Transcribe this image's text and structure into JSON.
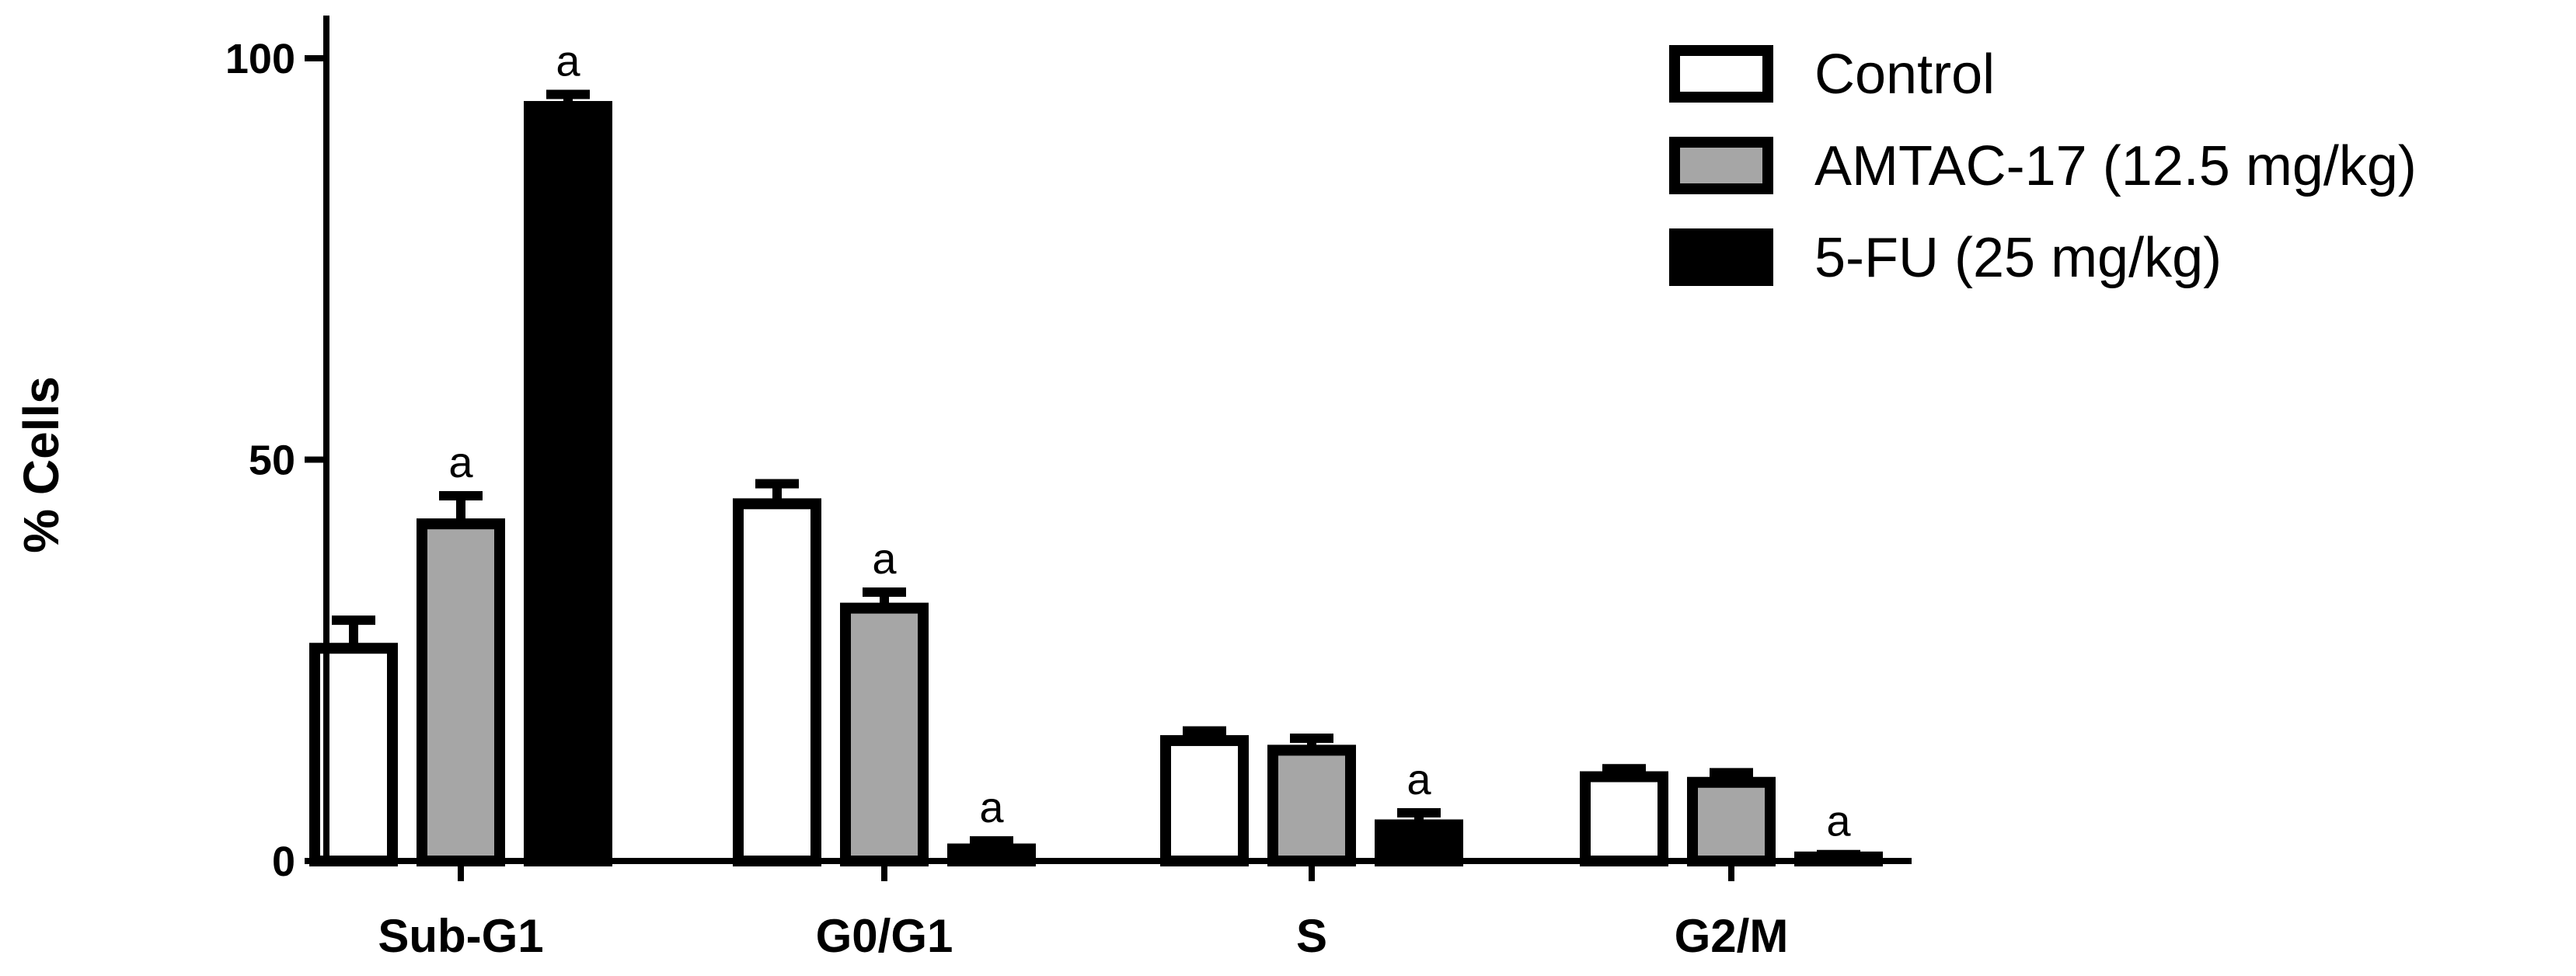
{
  "chart_data": {
    "type": "bar",
    "title": "",
    "xlabel": "",
    "ylabel": "% Cells",
    "ylim": [
      0,
      100
    ],
    "yticks": [
      0,
      50,
      100
    ],
    "grid": false,
    "legend_placement": "top-right",
    "categories": [
      "Sub-G1",
      "G0/G1",
      "S",
      "G2/M"
    ],
    "series": [
      {
        "name": "Control",
        "fill": "#ffffff",
        "values": [
          26.5,
          44.5,
          15.0,
          10.5
        ],
        "errors": [
          3.5,
          2.5,
          1.2,
          1.0
        ],
        "significance": [
          "",
          "",
          "",
          ""
        ]
      },
      {
        "name": "AMTAC-17 (12.5 mg/kg)",
        "fill": "#a6a6a6",
        "values": [
          42.0,
          31.5,
          13.8,
          9.8
        ],
        "errors": [
          3.5,
          2.0,
          1.5,
          1.2
        ],
        "significance": [
          "a",
          "a",
          "",
          ""
        ]
      },
      {
        "name": "5-FU (25 mg/kg)",
        "fill": "#000000",
        "values": [
          94.0,
          1.5,
          4.5,
          0.5
        ],
        "errors": [
          1.5,
          1.0,
          1.5,
          0.3
        ],
        "significance": [
          "a",
          "a",
          "a",
          "a"
        ]
      }
    ]
  }
}
